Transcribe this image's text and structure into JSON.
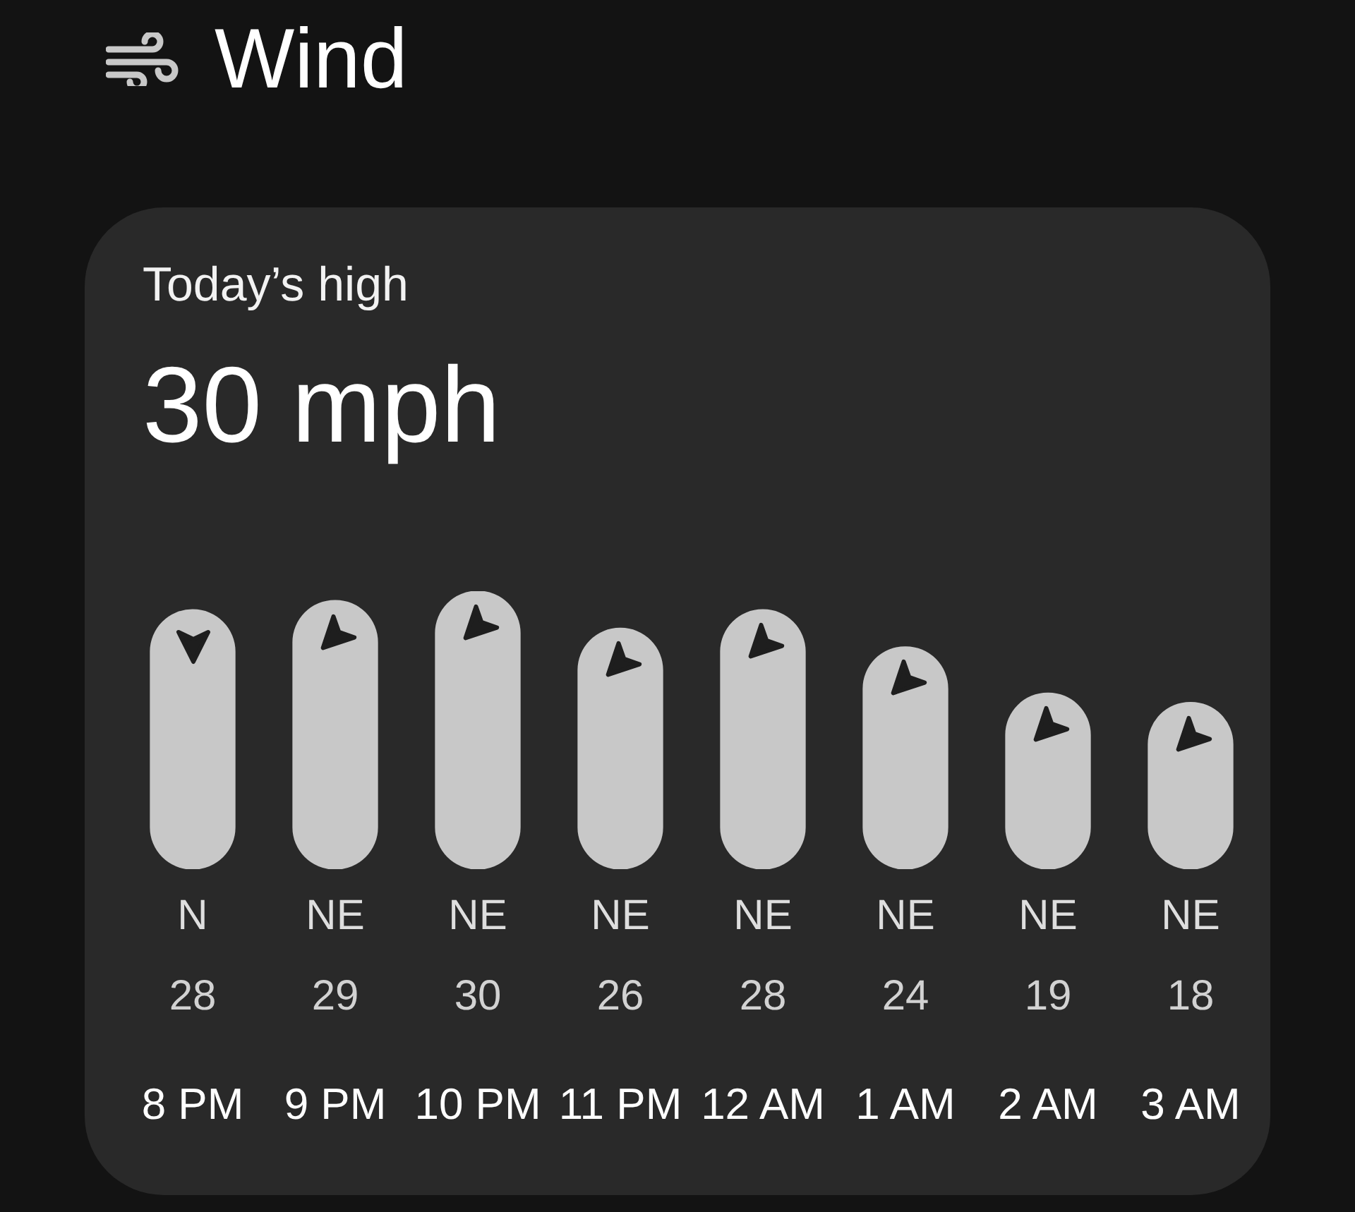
{
  "chart_data": {
    "type": "bar",
    "title": "Wind",
    "subtitle": "Today’s high",
    "annotations": [
      "30 mph",
      "N",
      "NE",
      "NE",
      "NE",
      "NE",
      "NE",
      "NE",
      "NE"
    ],
    "categories": [
      "8 PM",
      "9 PM",
      "10 PM",
      "11 PM",
      "12 AM",
      "1 AM",
      "2 AM",
      "3 AM"
    ],
    "values": [
      28,
      29,
      30,
      26,
      28,
      24,
      19,
      18
    ],
    "color": "#c8c8c8",
    "data_labels": true,
    "tick_labels": "x"
  }
}
